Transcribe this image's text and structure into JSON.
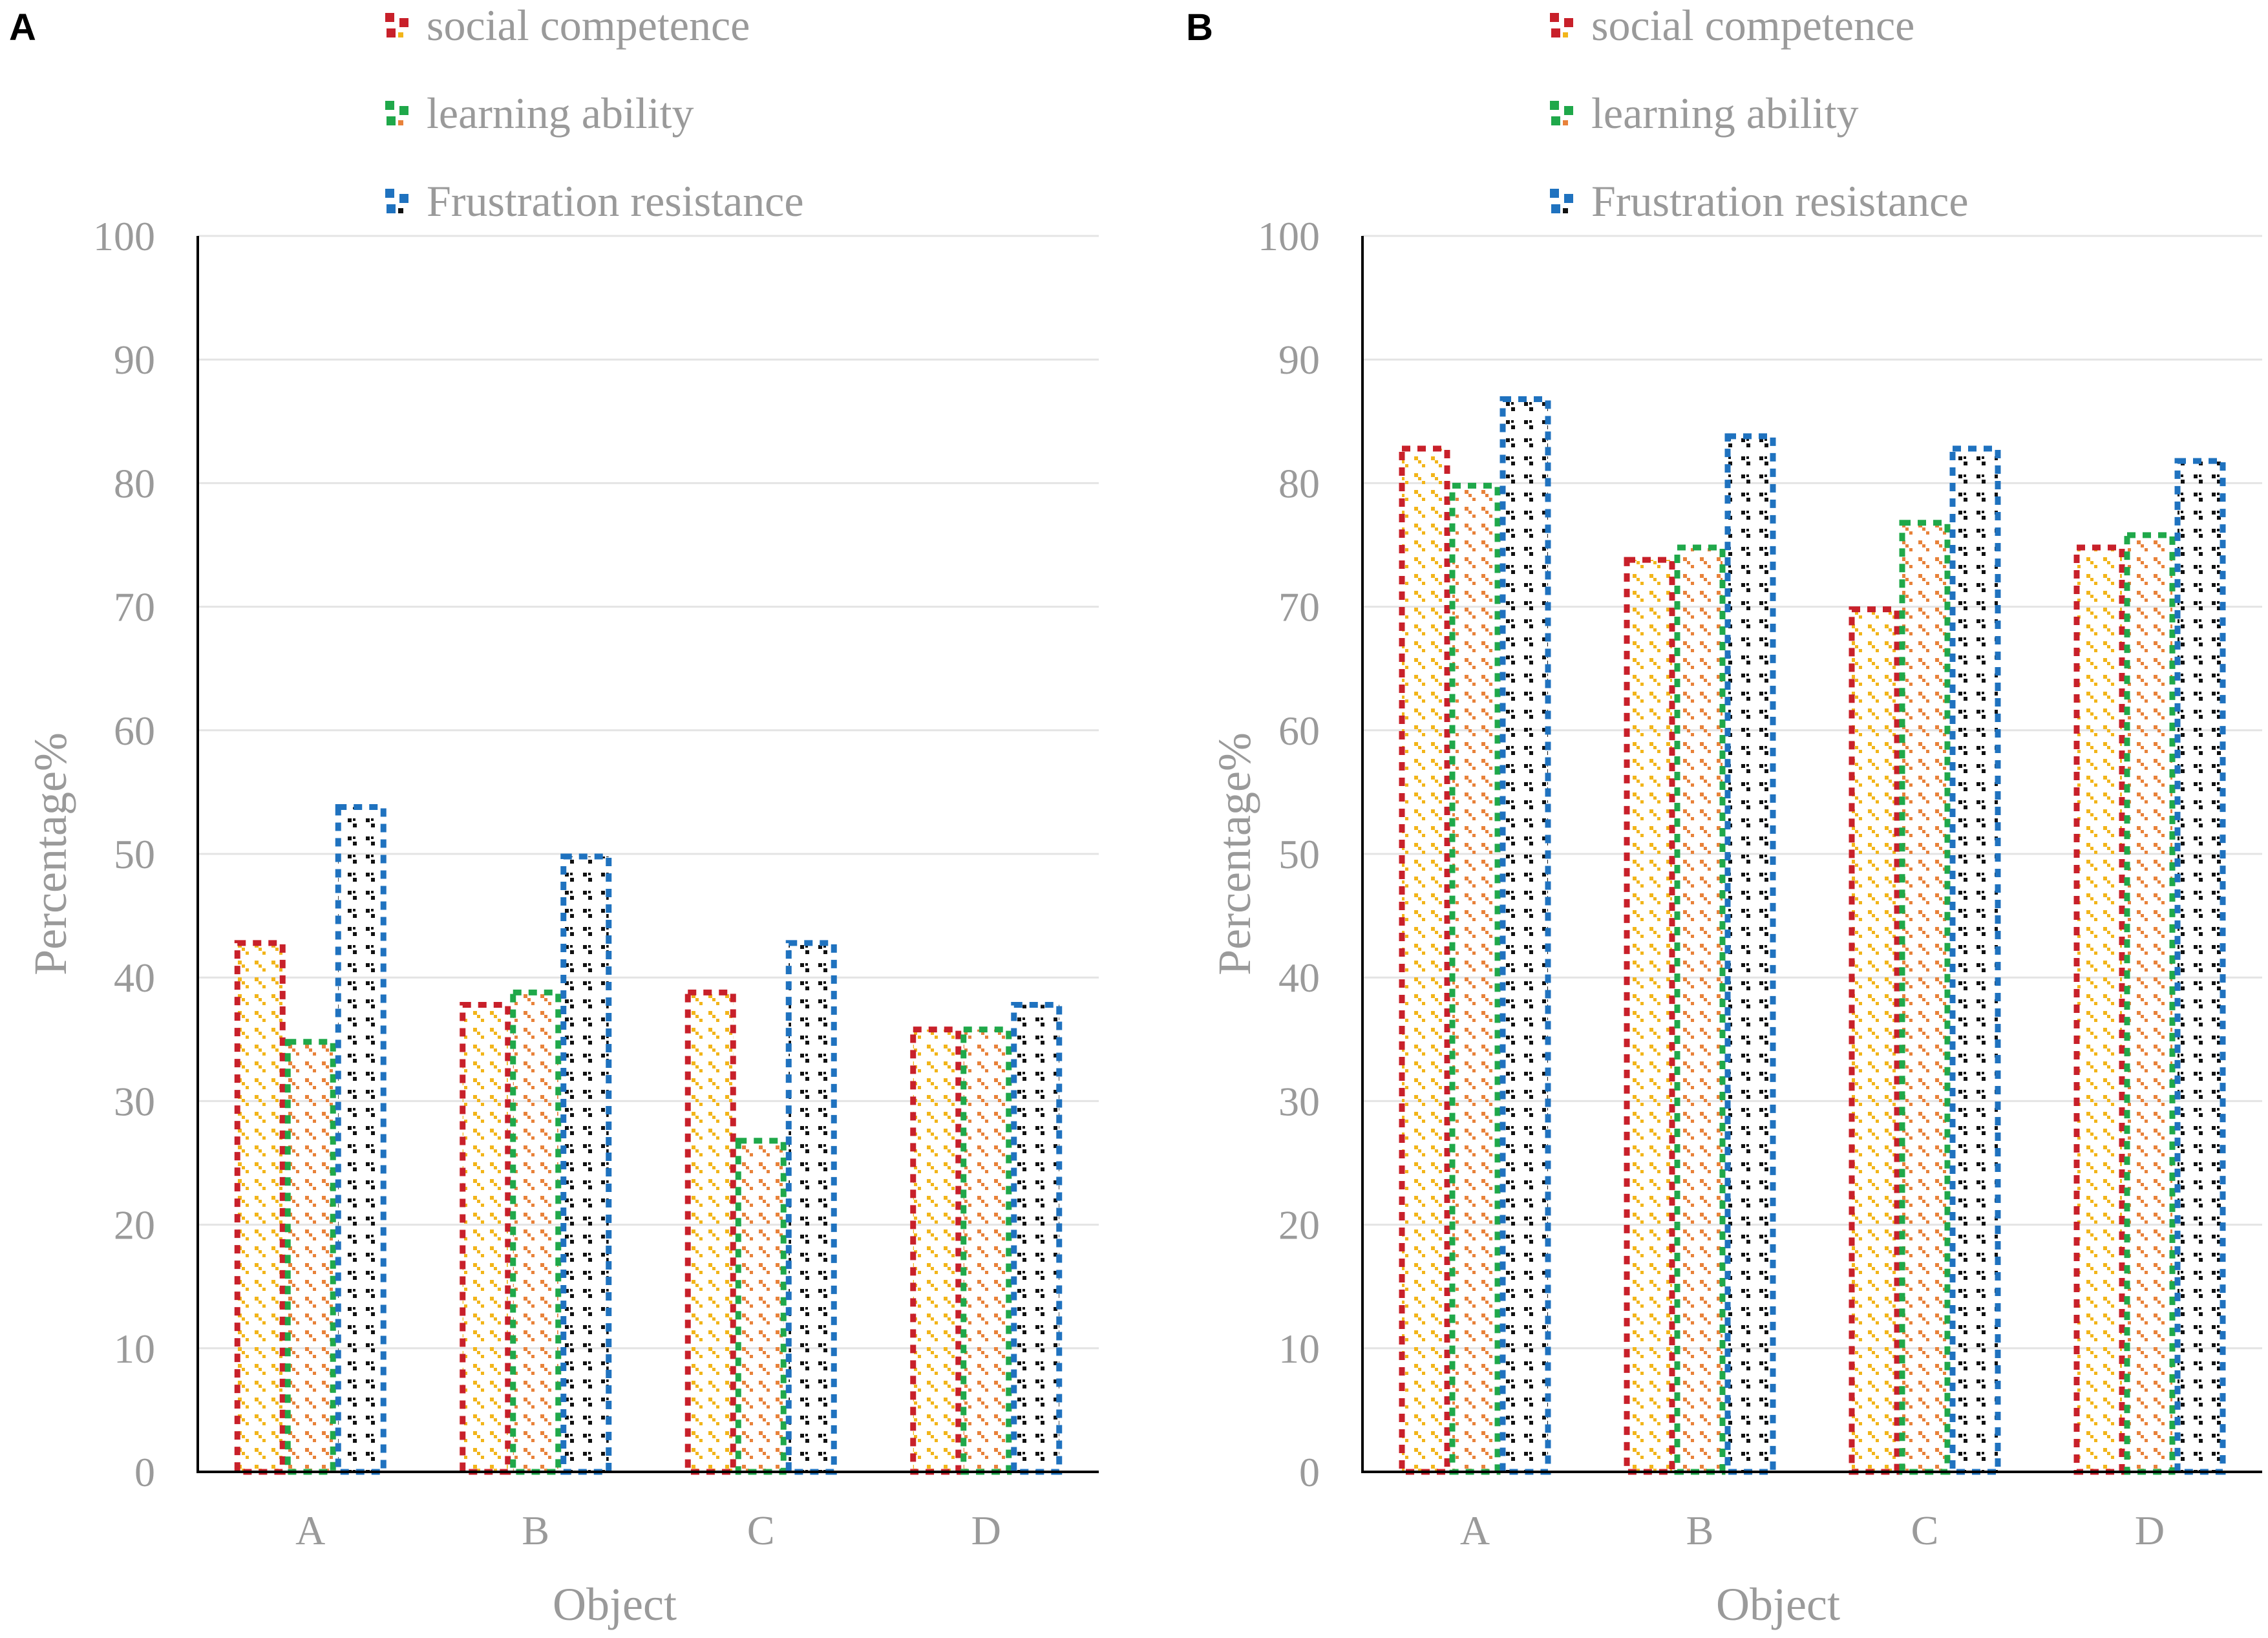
{
  "chart_data": [
    {
      "type": "bar",
      "panel_label": "A",
      "categories": [
        "A",
        "B",
        "C",
        "D"
      ],
      "series": [
        {
          "name": "social competence",
          "values": [
            43,
            38,
            39,
            36
          ]
        },
        {
          "name": "learning ability",
          "values": [
            35,
            39,
            27,
            36
          ]
        },
        {
          "name": "Frustration resistance",
          "values": [
            54,
            50,
            43,
            38
          ]
        }
      ],
      "xlabel": "Object",
      "ylabel": "Percentage%",
      "ylim": [
        0,
        100
      ],
      "yticks": [
        "0",
        "10",
        "20",
        "30",
        "40",
        "50",
        "60",
        "70",
        "80",
        "90",
        "100"
      ],
      "grid": true,
      "legend_position": "top"
    },
    {
      "type": "bar",
      "panel_label": "B",
      "categories": [
        "A",
        "B",
        "C",
        "D"
      ],
      "series": [
        {
          "name": "social competence",
          "values": [
            83,
            74,
            70,
            75
          ]
        },
        {
          "name": "learning ability",
          "values": [
            80,
            75,
            77,
            76
          ]
        },
        {
          "name": "Frustration resistance",
          "values": [
            87,
            84,
            83,
            82
          ]
        }
      ],
      "xlabel": "Object",
      "ylabel": "Percentage%",
      "ylim": [
        0,
        100
      ],
      "yticks": [
        "0",
        "10",
        "20",
        "30",
        "40",
        "50",
        "60",
        "70",
        "80",
        "90",
        "100"
      ],
      "grid": true,
      "legend_position": "top"
    }
  ],
  "colors": {
    "series": [
      "#c8202a",
      "#1fa84a",
      "#1f72bf"
    ],
    "inner": [
      "#f2b51a",
      "#e8823a",
      "#111111"
    ],
    "axis": "#000000",
    "grid": "#e4e4e4",
    "text": "#9a9a9a"
  }
}
